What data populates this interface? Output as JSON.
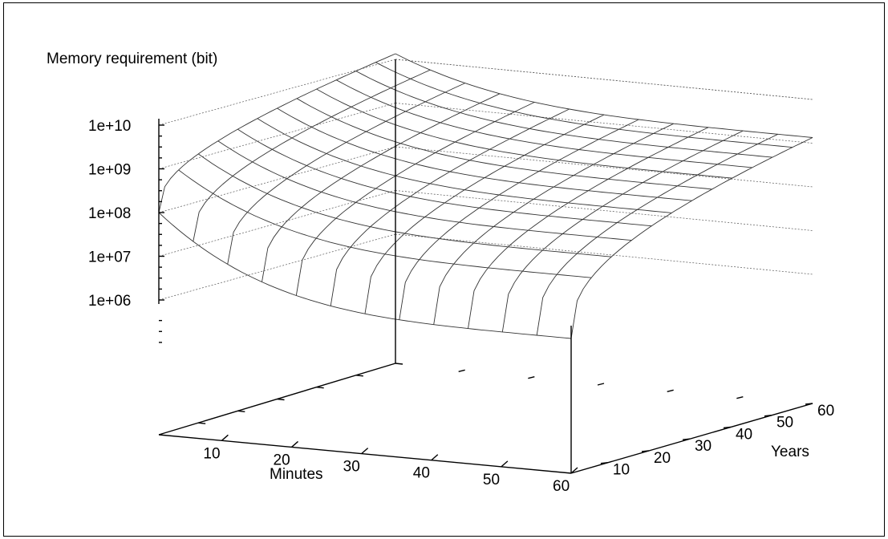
{
  "chart_data": {
    "type": "surface",
    "zlabel": "Memory requirement (bit)",
    "xlabel": "Minutes",
    "ylabel": "Years",
    "x_ticks": [
      "10",
      "20",
      "30",
      "40",
      "50",
      "60"
    ],
    "y_ticks": [
      "10",
      "20",
      "30",
      "40",
      "50",
      "60"
    ],
    "z_ticks": [
      "1e+10",
      "1e+09",
      "1e+08",
      "1e+07",
      "1e+06"
    ],
    "xlim": [
      1,
      60
    ],
    "ylim": [
      1,
      60
    ],
    "zscale": "log",
    "grid": true,
    "colors": {
      "axis": "#000000",
      "surface": "#333333",
      "grid": "#555555"
    },
    "surface_mesh": {
      "x_lines": 12,
      "y_lines": 12
    },
    "corner_values": {
      "near_left": 100000000.0,
      "far_left": 10000000000.0,
      "far_right": 1000000000.0,
      "near_right": 1000000.0
    }
  }
}
